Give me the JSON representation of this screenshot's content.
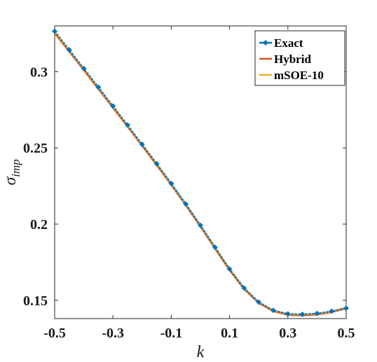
{
  "chart_data": {
    "type": "line",
    "title": "",
    "xlabel": "k",
    "ylabel_main": "σ",
    "ylabel_sub": "imp",
    "xlim": [
      -0.5,
      0.5
    ],
    "ylim": [
      0.138,
      0.33
    ],
    "xticks": [
      -0.5,
      -0.3,
      -0.1,
      0.1,
      0.3,
      0.5
    ],
    "xtick_labels": [
      "-0.5",
      "-0.3",
      "-0.1",
      "0.1",
      "0.3",
      "0.5"
    ],
    "yticks": [
      0.15,
      0.2,
      0.25,
      0.3
    ],
    "ytick_labels": [
      "0.15",
      "0.2",
      "0.25",
      "0.3"
    ],
    "legend_placement": "top-right",
    "grid": false,
    "x": [
      -0.5,
      -0.45,
      -0.4,
      -0.35,
      -0.3,
      -0.25,
      -0.2,
      -0.15,
      -0.1,
      -0.05,
      0.0,
      0.05,
      0.1,
      0.15,
      0.2,
      0.25,
      0.3,
      0.35,
      0.4,
      0.45,
      0.5
    ],
    "series": [
      {
        "name": "Exact",
        "color": "#0072BD",
        "marker": "diamond",
        "values": [
          0.3265,
          0.3143,
          0.3021,
          0.2898,
          0.2774,
          0.265,
          0.2523,
          0.2396,
          0.2266,
          0.2131,
          0.1992,
          0.1848,
          0.1705,
          0.158,
          0.1488,
          0.1434,
          0.1411,
          0.1408,
          0.1414,
          0.1428,
          0.1448
        ]
      },
      {
        "name": "Hybrid",
        "color": "#D95319",
        "marker": "none",
        "values": [
          0.3255,
          0.3134,
          0.3012,
          0.2889,
          0.2766,
          0.2642,
          0.2516,
          0.239,
          0.226,
          0.2126,
          0.1987,
          0.1843,
          0.17,
          0.1576,
          0.1484,
          0.143,
          0.1406,
          0.1402,
          0.1408,
          0.1424,
          0.1448
        ]
      },
      {
        "name": "mSOE-10",
        "color": "#EDB120",
        "marker": "none",
        "values": [
          0.3258,
          0.3137,
          0.3015,
          0.2892,
          0.2769,
          0.2645,
          0.2519,
          0.2392,
          0.2262,
          0.2128,
          0.1989,
          0.1845,
          0.1702,
          0.1578,
          0.1486,
          0.1432,
          0.1408,
          0.1404,
          0.141,
          0.1425,
          0.1447
        ]
      }
    ]
  }
}
